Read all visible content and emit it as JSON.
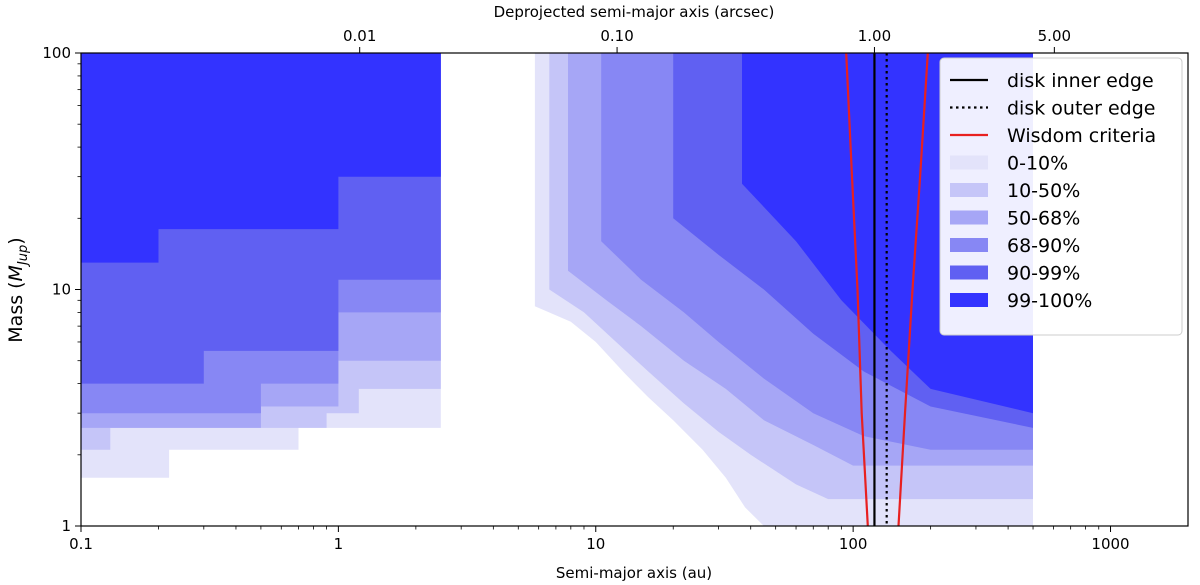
{
  "chart_data": {
    "type": "area",
    "xlabel": "Semi-major axis (au)",
    "ylabel": "Mass (",
    "ylabel_math": "M",
    "ylabel_sub": "Jup",
    "ylabel_close": ")",
    "top_xlabel": "Deprojected semi-major axis  (arcsec)",
    "x_scale": "log",
    "y_scale": "log",
    "xlim": [
      0.1,
      2000
    ],
    "ylim": [
      1,
      100
    ],
    "xticks": [
      {
        "value": 0.1,
        "label": "0.1"
      },
      {
        "value": 1,
        "label": "1"
      },
      {
        "value": 10,
        "label": "10"
      },
      {
        "value": 100,
        "label": "100"
      },
      {
        "value": 1000,
        "label": "1000"
      }
    ],
    "yticks": [
      {
        "value": 1,
        "label": "1"
      },
      {
        "value": 10,
        "label": "10"
      },
      {
        "value": 100,
        "label": "100"
      }
    ],
    "top_xticks": [
      {
        "value": 1.21,
        "label": "0.01"
      },
      {
        "value": 12.1,
        "label": "0.10"
      },
      {
        "value": 121,
        "label": "1.00"
      },
      {
        "value": 605,
        "label": "5.00"
      }
    ],
    "grid": false,
    "legend_position": "top-right",
    "series": [
      {
        "name": "0-10%",
        "color": "#e3e3fa",
        "lower_limit_mass": [
          [
            0.1,
            1.6
          ],
          [
            0.22,
            1.6
          ],
          [
            0.22,
            2.1
          ],
          [
            0.7,
            2.1
          ],
          [
            0.7,
            2.6
          ],
          [
            2.5,
            2.6
          ],
          [
            2.5,
            100
          ],
          [
            5.8,
            100
          ],
          [
            5.8,
            8.5
          ],
          [
            8,
            7.3
          ],
          [
            10,
            6.0
          ],
          [
            13,
            4.4
          ],
          [
            16,
            3.5
          ],
          [
            20,
            2.8
          ],
          [
            26,
            2.1
          ],
          [
            32,
            1.6
          ],
          [
            38,
            1.2
          ],
          [
            45,
            1.0
          ],
          [
            500,
            1.0
          ]
        ]
      },
      {
        "name": "10-50%",
        "color": "#c5c5f8",
        "lower_limit_mass": [
          [
            0.1,
            2.1
          ],
          [
            0.13,
            2.1
          ],
          [
            0.13,
            2.6
          ],
          [
            0.9,
            2.6
          ],
          [
            0.9,
            3.0
          ],
          [
            1.2,
            3.0
          ],
          [
            1.2,
            3.8
          ],
          [
            2.5,
            3.8
          ],
          [
            2.5,
            100
          ],
          [
            6.6,
            100
          ],
          [
            6.6,
            10
          ],
          [
            9,
            8
          ],
          [
            12,
            6
          ],
          [
            16,
            4.5
          ],
          [
            22,
            3.3
          ],
          [
            30,
            2.5
          ],
          [
            40,
            2.0
          ],
          [
            60,
            1.5
          ],
          [
            80,
            1.3
          ],
          [
            500,
            1.3
          ]
        ]
      },
      {
        "name": "50-68%",
        "color": "#a6a6f6",
        "lower_limit_mass": [
          [
            0.1,
            2.6
          ],
          [
            0.5,
            2.6
          ],
          [
            0.5,
            3.2
          ],
          [
            1.0,
            3.2
          ],
          [
            1.0,
            5.0
          ],
          [
            2.5,
            5.0
          ],
          [
            2.5,
            100
          ],
          [
            7.8,
            100
          ],
          [
            7.8,
            12
          ],
          [
            11,
            9
          ],
          [
            15,
            7
          ],
          [
            22,
            5
          ],
          [
            32,
            3.8
          ],
          [
            45,
            2.8
          ],
          [
            70,
            2.2
          ],
          [
            100,
            1.8
          ],
          [
            500,
            1.8
          ]
        ]
      },
      {
        "name": "68-90%",
        "color": "#8787f4",
        "lower_limit_mass": [
          [
            0.1,
            3.0
          ],
          [
            0.5,
            3.0
          ],
          [
            0.5,
            4.0
          ],
          [
            1.0,
            4.0
          ],
          [
            1.0,
            8.0
          ],
          [
            2.5,
            8.0
          ],
          [
            2.5,
            100
          ],
          [
            10.5,
            100
          ],
          [
            10.5,
            16
          ],
          [
            15,
            11
          ],
          [
            22,
            8
          ],
          [
            30,
            6
          ],
          [
            45,
            4.2
          ],
          [
            70,
            3.0
          ],
          [
            110,
            2.4
          ],
          [
            200,
            2.1
          ],
          [
            500,
            2.1
          ]
        ]
      },
      {
        "name": "90-99%",
        "color": "#6060f2",
        "lower_limit_mass": [
          [
            0.1,
            4.0
          ],
          [
            0.3,
            4.0
          ],
          [
            0.3,
            5.5
          ],
          [
            1.0,
            5.5
          ],
          [
            1.0,
            11
          ],
          [
            2.5,
            11
          ],
          [
            2.5,
            100
          ],
          [
            20,
            100
          ],
          [
            20,
            20
          ],
          [
            30,
            14
          ],
          [
            45,
            10
          ],
          [
            70,
            6.5
          ],
          [
            110,
            4.5
          ],
          [
            200,
            3.2
          ],
          [
            500,
            2.6
          ]
        ]
      },
      {
        "name": "99-100%",
        "color": "#3333ff",
        "lower_limit_mass": [
          [
            0.1,
            13
          ],
          [
            0.2,
            13
          ],
          [
            0.2,
            18
          ],
          [
            1.0,
            18
          ],
          [
            1.0,
            30
          ],
          [
            2.5,
            30
          ],
          [
            2.5,
            100
          ],
          [
            37,
            100
          ],
          [
            37,
            28
          ],
          [
            60,
            16
          ],
          [
            90,
            9
          ],
          [
            140,
            5.5
          ],
          [
            200,
            3.8
          ],
          [
            500,
            3.0
          ]
        ]
      }
    ],
    "lines": [
      {
        "name": "disk inner edge",
        "color": "#000000",
        "style": "solid",
        "x": 121
      },
      {
        "name": "disk  outer edge",
        "color": "#000000",
        "style": "dotted",
        "x": 135
      },
      {
        "name": "Wisdom criteria",
        "color": "#e82020",
        "style": "solid",
        "inner_branch": [
          [
            114,
            1
          ],
          [
            108,
            3
          ],
          [
            104,
            10
          ],
          [
            99,
            30
          ],
          [
            94,
            100
          ]
        ],
        "outer_branch": [
          [
            150,
            1
          ],
          [
            159,
            3
          ],
          [
            170,
            10
          ],
          [
            182,
            30
          ],
          [
            195,
            100
          ]
        ]
      }
    ]
  }
}
